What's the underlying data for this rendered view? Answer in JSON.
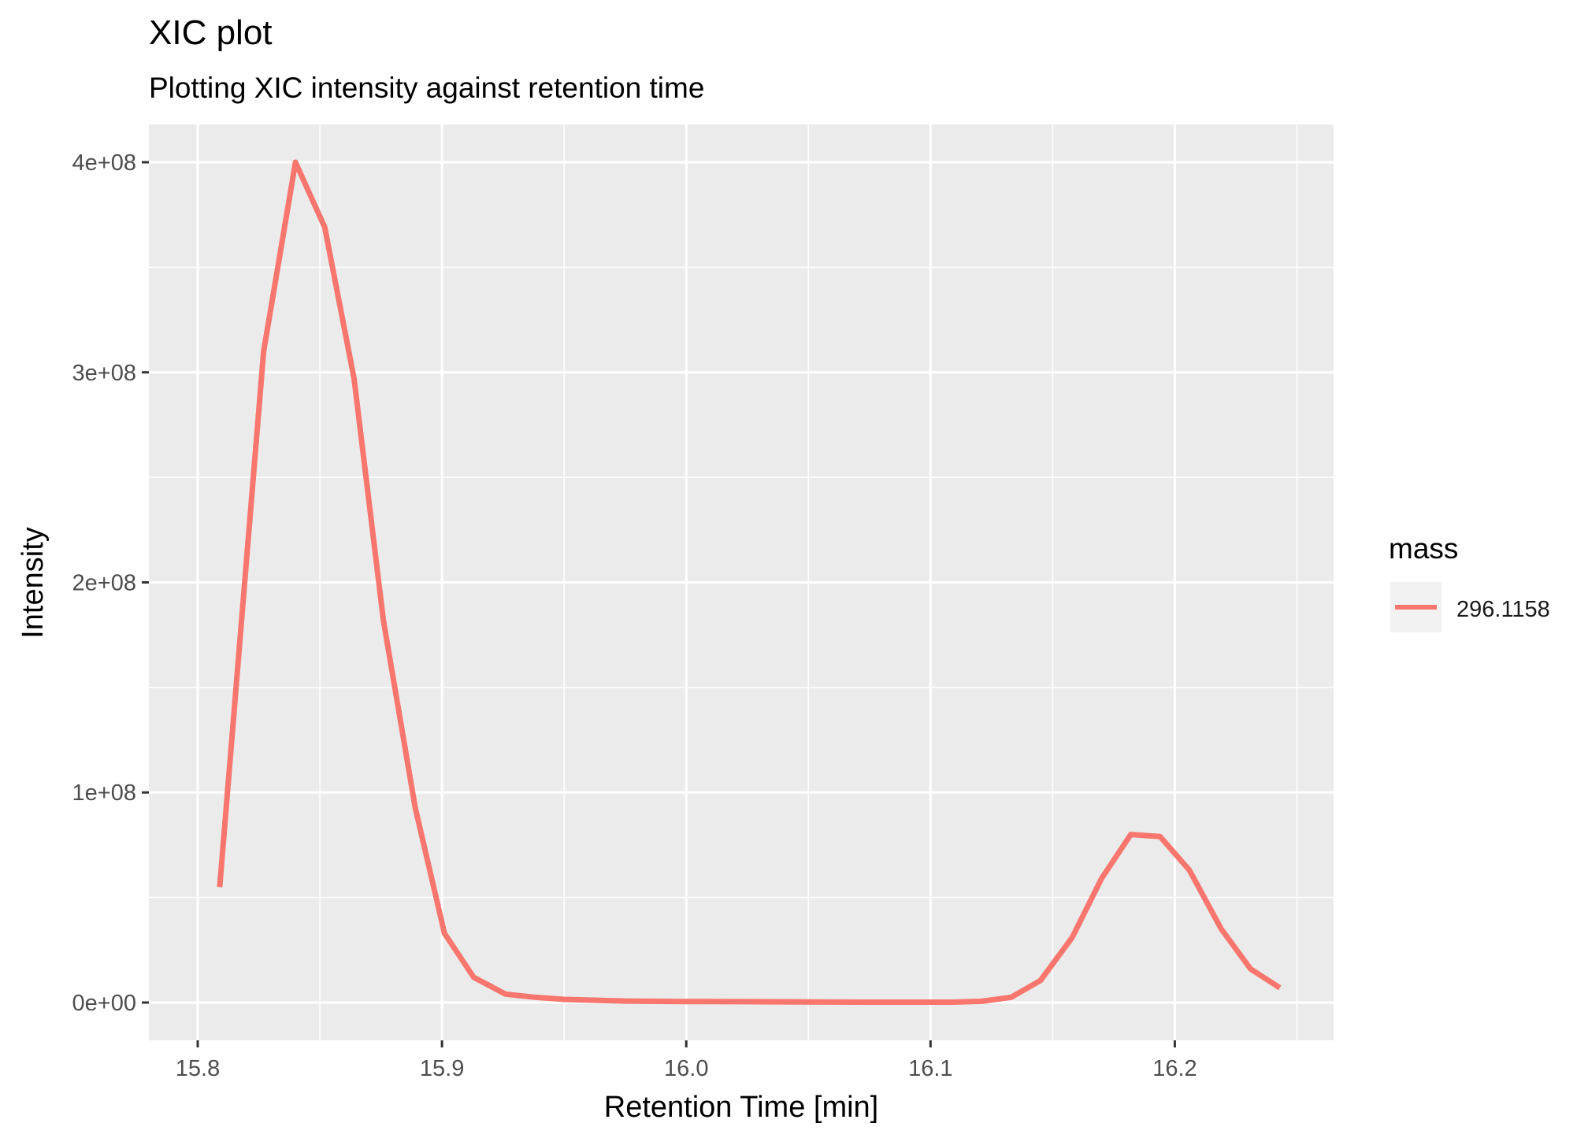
{
  "chart_data": {
    "type": "line",
    "title": "XIC plot",
    "subtitle": "Plotting XIC intensity against retention time",
    "xlabel": "Retention Time [min]",
    "ylabel": "Intensity",
    "xlim": [
      15.78,
      16.265
    ],
    "ylim": [
      -18000000,
      418000000
    ],
    "x_ticks": [
      15.8,
      15.9,
      16.0,
      16.1,
      16.2
    ],
    "x_tick_labels": [
      "15.8",
      "15.9",
      "16.0",
      "16.1",
      "16.2"
    ],
    "y_ticks": [
      0,
      100000000,
      200000000,
      300000000,
      400000000
    ],
    "y_tick_labels": [
      "0e+00",
      "1e+08",
      "2e+08",
      "3e+08",
      "4e+08"
    ],
    "grid": true,
    "legend": {
      "title": "mass",
      "position": "right",
      "entries": [
        {
          "label": "296.1158",
          "color": "#F8766D"
        }
      ]
    },
    "series": [
      {
        "name": "296.1158",
        "color": "#F8766D",
        "x": [
          15.809,
          15.827,
          15.84,
          15.852,
          15.864,
          15.876,
          15.889,
          15.901,
          15.913,
          15.926,
          15.938,
          15.95,
          15.975,
          15.999,
          16.024,
          16.048,
          16.073,
          16.097,
          16.109,
          16.121,
          16.133,
          16.145,
          16.158,
          16.17,
          16.182,
          16.194,
          16.206,
          16.219,
          16.231,
          16.243
        ],
        "y": [
          55000000,
          310000000,
          400000000,
          369000000,
          297000000,
          182000000,
          93000000,
          33000000,
          12000000,
          4000000,
          2500000,
          1500000,
          700000,
          500000,
          400000,
          300000,
          200000,
          200000,
          200000,
          600000,
          2500000,
          10500000,
          31000000,
          59000000,
          80000000,
          79000000,
          63000000,
          35000000,
          16000000,
          7000000
        ]
      }
    ]
  }
}
